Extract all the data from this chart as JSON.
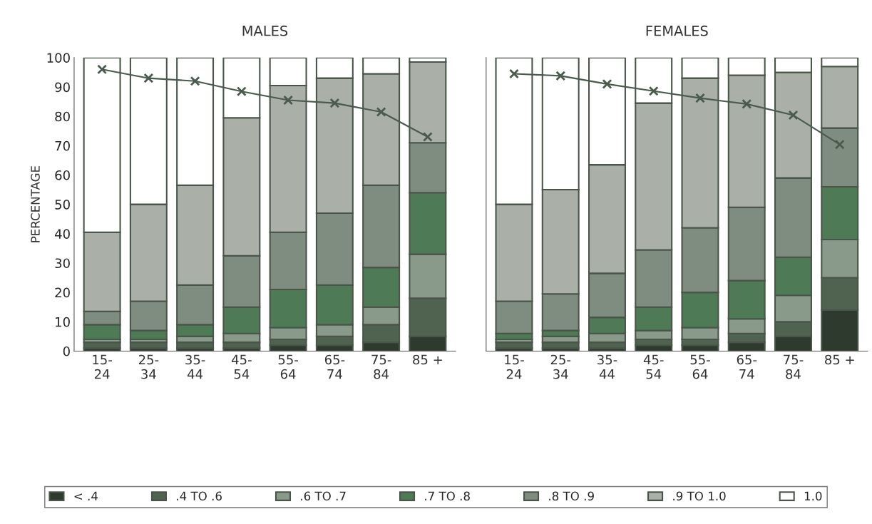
{
  "chart_data": [
    {
      "type": "bar",
      "title": "MALES",
      "ylabel": "PERCENTAGE",
      "stacked": true,
      "categories": [
        "15-\n24",
        "25-\n34",
        "35-\n44",
        "45-\n54",
        "55-\n64",
        "65-\n74",
        "75-\n84",
        "85 +"
      ],
      "ylim": [
        0,
        100
      ],
      "yticks": [
        0,
        10,
        20,
        30,
        40,
        50,
        60,
        70,
        80,
        90,
        100
      ],
      "grid": false,
      "legend": "bottom",
      "marker": "cross",
      "series": [
        {
          "name": "< .4",
          "color": "#2f3a2e",
          "values": [
            1,
            1,
            1,
            1,
            2,
            2,
            3,
            5
          ]
        },
        {
          "name": ".4 TO .6",
          "color": "#4f6350",
          "values": [
            2,
            2,
            2,
            2,
            2,
            3,
            6,
            13
          ]
        },
        {
          "name": ".6 TO .7",
          "color": "#8a9a8a",
          "values": [
            1,
            1,
            2,
            3,
            4,
            4,
            6,
            15
          ]
        },
        {
          "name": ".7 TO .8",
          "color": "#4e7a55",
          "values": [
            5,
            3,
            4,
            9,
            13,
            13.5,
            13.5,
            21
          ]
        },
        {
          "name": ".8 TO .9",
          "color": "#7f8c80",
          "values": [
            4.5,
            10,
            13.5,
            17.5,
            19.5,
            24.5,
            28,
            17
          ]
        },
        {
          "name": ".9 TO 1.0",
          "color": "#aab0a8",
          "values": [
            27,
            33,
            34,
            47,
            50,
            46,
            38,
            27.5
          ]
        },
        {
          "name": "1.0",
          "color": "#ffffff",
          "values": [
            59.5,
            50,
            43.5,
            20.5,
            9.5,
            7,
            5.5,
            1.5
          ]
        },
        {
          "type": "line",
          "color": "#4a5a4c",
          "values": [
            96,
            93,
            92,
            88.5,
            85.5,
            84.5,
            81.5,
            73
          ]
        }
      ]
    },
    {
      "type": "bar",
      "title": "FEMALES",
      "stacked": true,
      "tick_labels": "x",
      "categories": [
        "15-\n24",
        "25-\n34",
        "35-\n44",
        "45-\n54",
        "55-\n64",
        "65-\n74",
        "75-\n84",
        "85 +"
      ],
      "ylim": [
        0,
        100
      ],
      "yticks": [
        0,
        10,
        20,
        30,
        40,
        50,
        60,
        70,
        80,
        90,
        100
      ],
      "grid": false,
      "marker": "cross",
      "series": [
        {
          "color": "#2f3a2e",
          "values": [
            1,
            1,
            1,
            2,
            2,
            3,
            5,
            14
          ]
        },
        {
          "color": "#4f6350",
          "values": [
            2,
            2,
            2,
            2,
            2,
            3,
            5,
            11
          ]
        },
        {
          "color": "#8a9a8a",
          "values": [
            1,
            2,
            3,
            3,
            4,
            5,
            9,
            13
          ]
        },
        {
          "color": "#4e7a55",
          "values": [
            2,
            2,
            5.5,
            8,
            12,
            13,
            13,
            18
          ]
        },
        {
          "color": "#7f8c80",
          "values": [
            11,
            12.5,
            15,
            19.5,
            22,
            25,
            27,
            20
          ]
        },
        {
          "color": "#aab0a8",
          "values": [
            33,
            35.5,
            37,
            50,
            51,
            45,
            36,
            21
          ]
        },
        {
          "color": "#ffffff",
          "values": [
            50,
            45,
            36.5,
            15.5,
            7,
            6,
            5,
            3
          ]
        },
        {
          "type": "line",
          "color": "#4a5a4c",
          "values": [
            94.5,
            93.8,
            91,
            88.6,
            86.2,
            84.2,
            80.4,
            70.4
          ]
        }
      ]
    }
  ]
}
